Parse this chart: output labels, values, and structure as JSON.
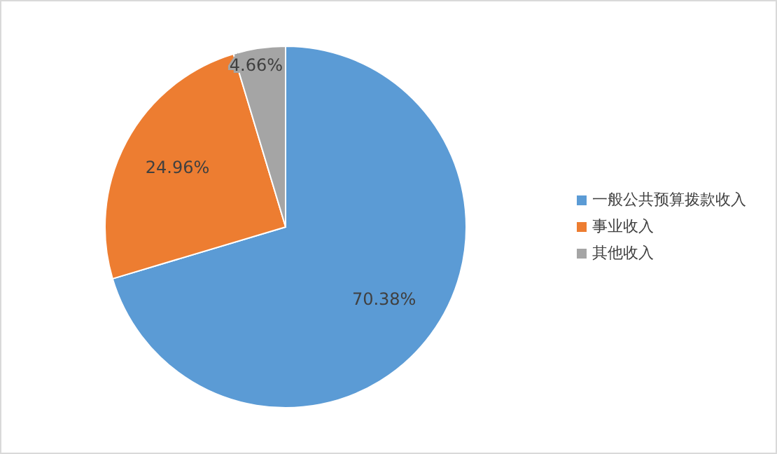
{
  "chart_data": {
    "type": "pie",
    "categories": [
      "一般公共预算拨款收入",
      "事业收入",
      "其他收入"
    ],
    "values": [
      70.38,
      24.96,
      4.66
    ],
    "value_labels": [
      "70.38%",
      "24.96%",
      "4.66%"
    ],
    "colors": [
      "#5b9bd5",
      "#ed7d31",
      "#a5a5a5"
    ],
    "legend": "right"
  }
}
